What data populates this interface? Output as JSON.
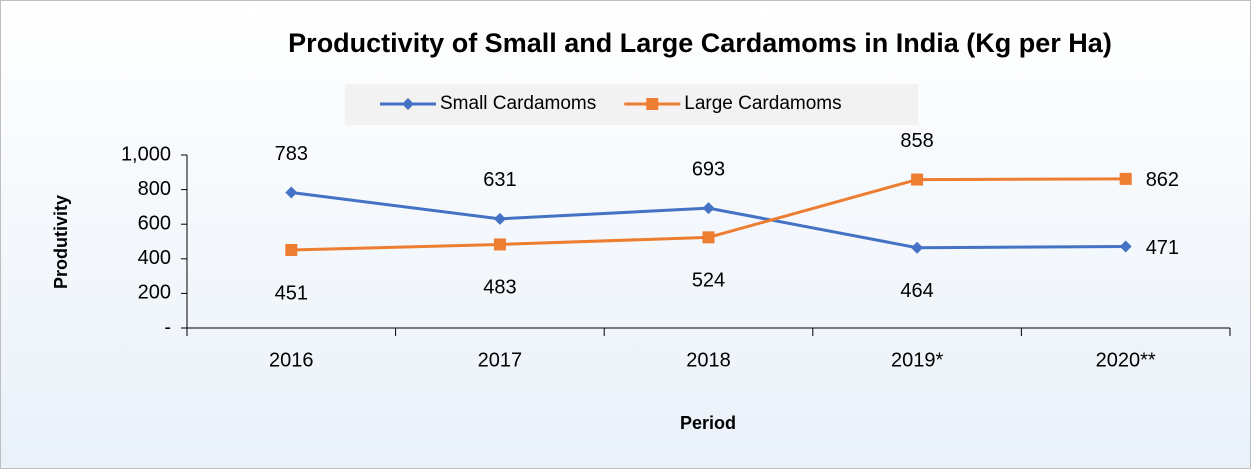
{
  "chart_data": {
    "type": "line",
    "title": "Productivity of Small and Large Cardamoms in India (Kg per Ha)",
    "x_label": "Period",
    "y_label": "Produtivity",
    "categories": [
      "2016",
      "2017",
      "2018",
      "2019*",
      "2020**"
    ],
    "series": [
      {
        "name": "Small Cardamoms",
        "color": "#4472c4",
        "marker": "diamond",
        "values": [
          783,
          631,
          693,
          464,
          471
        ]
      },
      {
        "name": "Large Cardamoms",
        "color": "#ed7d31",
        "marker": "square",
        "values": [
          451,
          483,
          524,
          858,
          862
        ]
      }
    ],
    "ylim": [
      0,
      1000
    ],
    "yticks": [
      {
        "value": 0,
        "label": "-"
      },
      200,
      400,
      600,
      800,
      {
        "value": 1000,
        "label": "1,000"
      }
    ],
    "grid": false,
    "legend": "top"
  }
}
